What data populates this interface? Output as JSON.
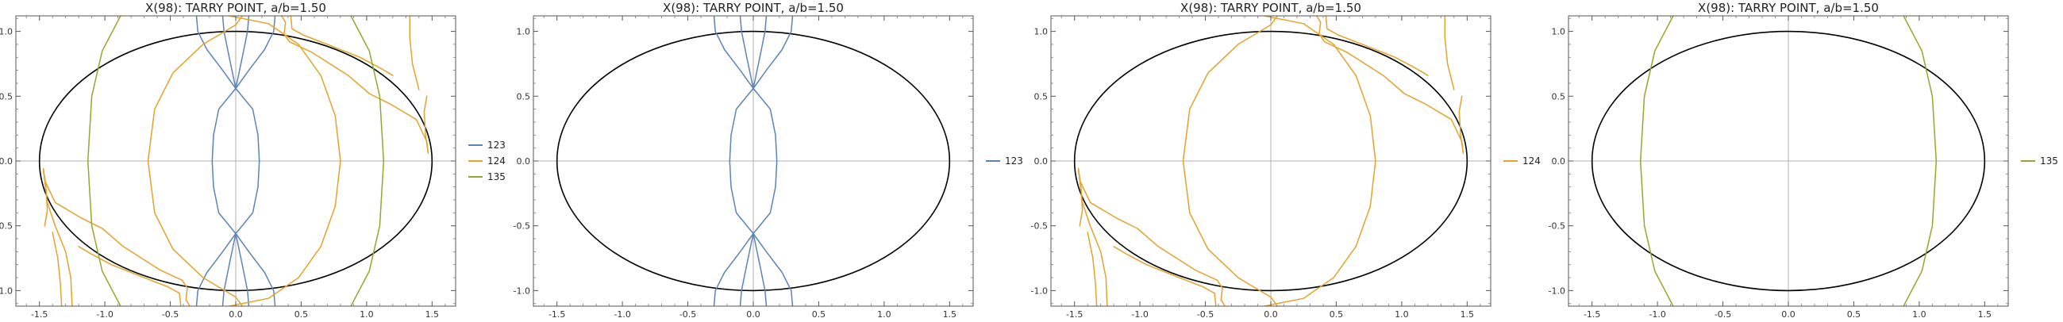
{
  "chart_data": [
    {
      "type": "line",
      "title": "X(98): TARRY POINT, a/b=1.50",
      "xlabel": "",
      "ylabel": "",
      "xlim": [
        -1.68,
        1.68
      ],
      "ylim": [
        -1.12,
        1.12
      ],
      "x_ticks": [
        -1.5,
        -1.0,
        -0.5,
        0.0,
        0.5,
        1.0,
        1.5
      ],
      "x_tick_labels": [
        "-1.5",
        "-1.0",
        "-0.5",
        "0.0",
        "0.5",
        "1.0",
        "1.5"
      ],
      "y_ticks": [
        -1.0,
        -0.5,
        0.0,
        0.5,
        1.0
      ],
      "y_tick_labels": [
        "-1.0",
        "-0.5",
        "0.0",
        "0.5",
        "1.0"
      ],
      "ellipse": {
        "a": 1.5,
        "b": 1.0,
        "color": "#000000"
      },
      "legend_position": "right",
      "series": [
        {
          "name": "123",
          "color": "#5b84b7"
        },
        {
          "name": "124",
          "color": "#e4a32a"
        },
        {
          "name": "135",
          "color": "#8faa2d"
        }
      ]
    },
    {
      "type": "line",
      "title": "X(98): TARRY POINT, a/b=1.50",
      "xlabel": "",
      "ylabel": "",
      "xlim": [
        -1.68,
        1.68
      ],
      "ylim": [
        -1.12,
        1.12
      ],
      "x_ticks": [
        -1.5,
        -1.0,
        -0.5,
        0.0,
        0.5,
        1.0,
        1.5
      ],
      "x_tick_labels": [
        "-1.5",
        "-1.0",
        "-0.5",
        "0.0",
        "0.5",
        "1.0",
        "1.5"
      ],
      "y_ticks": [
        -1.0,
        -0.5,
        0.0,
        0.5,
        1.0
      ],
      "y_tick_labels": [
        "-1.0",
        "-0.5",
        "0.0",
        "0.5",
        "1.0"
      ],
      "ellipse": {
        "a": 1.5,
        "b": 1.0,
        "color": "#000000"
      },
      "legend_position": "right",
      "series": [
        {
          "name": "123",
          "color": "#5b84b7"
        }
      ]
    },
    {
      "type": "line",
      "title": "X(98): TARRY POINT, a/b=1.50",
      "xlabel": "",
      "ylabel": "",
      "xlim": [
        -1.68,
        1.68
      ],
      "ylim": [
        -1.12,
        1.12
      ],
      "x_ticks": [
        -1.5,
        -1.0,
        -0.5,
        0.0,
        0.5,
        1.0,
        1.5
      ],
      "x_tick_labels": [
        "-1.5",
        "-1.0",
        "-0.5",
        "0.0",
        "0.5",
        "1.0",
        "1.5"
      ],
      "y_ticks": [
        -1.0,
        -0.5,
        0.0,
        0.5,
        1.0
      ],
      "y_tick_labels": [
        "-1.0",
        "-0.5",
        "0.0",
        "0.5",
        "1.0"
      ],
      "ellipse": {
        "a": 1.5,
        "b": 1.0,
        "color": "#000000"
      },
      "legend_position": "right",
      "series": [
        {
          "name": "124",
          "color": "#e4a32a"
        }
      ]
    },
    {
      "type": "line",
      "title": "X(98): TARRY POINT, a/b=1.50",
      "xlabel": "",
      "ylabel": "",
      "xlim": [
        -1.68,
        1.68
      ],
      "ylim": [
        -1.12,
        1.12
      ],
      "x_ticks": [
        -1.5,
        -1.0,
        -0.5,
        0.0,
        0.5,
        1.0,
        1.5
      ],
      "x_tick_labels": [
        "-1.5",
        "-1.0",
        "-0.5",
        "0.0",
        "0.5",
        "1.0",
        "1.5"
      ],
      "y_ticks": [
        -1.0,
        -0.5,
        0.0,
        0.5,
        1.0
      ],
      "y_tick_labels": [
        "-1.0",
        "-0.5",
        "0.0",
        "0.5",
        "1.0"
      ],
      "ellipse": {
        "a": 1.5,
        "b": 1.0,
        "color": "#000000"
      },
      "legend_position": "right",
      "series": [
        {
          "name": "135",
          "color": "#8faa2d"
        }
      ]
    }
  ],
  "curves": {
    "123": [
      [
        [
          [
            0.3,
            -1.12
          ],
          [
            0.29,
            -1.0
          ],
          [
            0.22,
            -0.86
          ],
          [
            0.1,
            -0.7
          ],
          [
            0.0,
            -0.56
          ],
          [
            -0.13,
            -0.4
          ],
          [
            -0.17,
            -0.2
          ],
          [
            -0.18,
            0.0
          ],
          [
            -0.17,
            0.2
          ],
          [
            -0.13,
            0.4
          ],
          [
            0.0,
            0.56
          ],
          [
            0.1,
            0.7
          ],
          [
            0.22,
            0.86
          ],
          [
            0.29,
            1.0
          ],
          [
            0.3,
            1.12
          ]
        ]
      ],
      [
        [
          [
            -0.3,
            -1.12
          ],
          [
            -0.29,
            -1.0
          ],
          [
            -0.22,
            -0.86
          ],
          [
            -0.1,
            -0.7
          ],
          [
            0.0,
            -0.56
          ],
          [
            0.13,
            -0.4
          ],
          [
            0.17,
            -0.2
          ],
          [
            0.18,
            0.0
          ],
          [
            0.17,
            0.2
          ],
          [
            0.13,
            0.4
          ],
          [
            0.0,
            0.56
          ],
          [
            -0.1,
            0.7
          ],
          [
            -0.22,
            0.86
          ],
          [
            -0.29,
            1.0
          ],
          [
            -0.3,
            1.12
          ]
        ]
      ],
      [
        [
          [
            0.1,
            -1.12
          ],
          [
            0.09,
            -1.0
          ],
          [
            0.05,
            -0.8
          ],
          [
            0.0,
            -0.56
          ]
        ]
      ],
      [
        [
          [
            -0.1,
            -1.12
          ],
          [
            -0.09,
            -1.0
          ],
          [
            -0.05,
            -0.8
          ],
          [
            0.0,
            -0.56
          ]
        ]
      ],
      [
        [
          [
            0.0,
            0.56
          ],
          [
            0.05,
            0.8
          ],
          [
            0.09,
            1.0
          ],
          [
            0.1,
            1.12
          ]
        ]
      ],
      [
        [
          [
            0.0,
            0.56
          ],
          [
            -0.05,
            0.8
          ],
          [
            -0.09,
            1.0
          ],
          [
            -0.1,
            1.12
          ]
        ]
      ]
    ],
    "124": [
      [
        [
          [
            0.05,
            1.12
          ],
          [
            0.0,
            1.05
          ],
          [
            -0.25,
            0.9
          ],
          [
            -0.48,
            0.68
          ],
          [
            -0.62,
            0.4
          ],
          [
            -0.67,
            0.0
          ],
          [
            -0.62,
            -0.4
          ],
          [
            -0.48,
            -0.68
          ],
          [
            -0.25,
            -0.9
          ],
          [
            0.0,
            -1.05
          ],
          [
            0.05,
            -1.12
          ]
        ]
      ],
      [
        [
          [
            -0.05,
            1.12
          ],
          [
            0.25,
            1.06
          ],
          [
            0.48,
            0.9
          ],
          [
            0.65,
            0.66
          ],
          [
            0.76,
            0.35
          ],
          [
            0.8,
            0.0
          ],
          [
            0.76,
            -0.35
          ],
          [
            0.65,
            -0.66
          ],
          [
            0.48,
            -0.9
          ],
          [
            0.25,
            -1.06
          ],
          [
            -0.05,
            -1.12
          ]
        ]
      ],
      [
        [
          [
            0.35,
            1.12
          ],
          [
            0.38,
            1.07
          ],
          [
            0.37,
            0.98
          ],
          [
            0.41,
            0.92
          ],
          [
            0.58,
            0.84
          ],
          [
            0.86,
            0.66
          ],
          [
            1.02,
            0.52
          ],
          [
            1.18,
            0.44
          ],
          [
            1.38,
            0.32
          ],
          [
            1.46,
            0.15
          ],
          [
            1.47,
            0.06
          ]
        ]
      ],
      [
        [
          [
            0.42,
            1.12
          ],
          [
            0.43,
            1.02
          ],
          [
            0.52,
            0.97
          ],
          [
            0.7,
            0.9
          ],
          [
            0.95,
            0.8
          ],
          [
            1.1,
            0.72
          ],
          [
            1.2,
            0.66
          ]
        ]
      ],
      [
        [
          [
            1.47,
            0.06
          ],
          [
            1.45,
            0.2
          ],
          [
            1.44,
            0.38
          ],
          [
            1.46,
            0.5
          ]
        ]
      ],
      [
        [
          [
            -0.42,
            -1.12
          ],
          [
            -0.43,
            -1.02
          ],
          [
            -0.52,
            -0.97
          ],
          [
            -0.7,
            -0.9
          ],
          [
            -0.95,
            -0.8
          ],
          [
            -1.1,
            -0.72
          ],
          [
            -1.2,
            -0.66
          ]
        ]
      ],
      [
        [
          [
            -0.35,
            -1.12
          ],
          [
            -0.38,
            -1.07
          ],
          [
            -0.37,
            -0.98
          ],
          [
            -0.41,
            -0.92
          ],
          [
            -0.58,
            -0.84
          ],
          [
            -0.86,
            -0.66
          ],
          [
            -1.02,
            -0.52
          ],
          [
            -1.18,
            -0.44
          ],
          [
            -1.38,
            -0.32
          ],
          [
            -1.46,
            -0.15
          ],
          [
            -1.47,
            -0.06
          ]
        ]
      ],
      [
        [
          [
            -1.47,
            -0.06
          ],
          [
            -1.45,
            -0.2
          ],
          [
            -1.44,
            -0.38
          ],
          [
            -1.46,
            -0.5
          ]
        ]
      ],
      [
        [
          [
            -1.25,
            -1.12
          ],
          [
            -1.26,
            -0.9
          ],
          [
            -1.3,
            -0.7
          ],
          [
            -1.38,
            -0.5
          ],
          [
            -1.44,
            -0.32
          ],
          [
            -1.47,
            -0.06
          ]
        ]
      ],
      [
        [
          [
            -1.33,
            -1.12
          ],
          [
            -1.34,
            -0.95
          ],
          [
            -1.36,
            -0.75
          ],
          [
            -1.4,
            -0.55
          ]
        ]
      ],
      [
        [
          [
            1.33,
            1.12
          ],
          [
            1.33,
            0.95
          ],
          [
            1.35,
            0.75
          ],
          [
            1.4,
            0.55
          ]
        ]
      ]
    ],
    "135": [
      [
        [
          [
            -0.88,
            1.12
          ],
          [
            -1.02,
            0.85
          ],
          [
            -1.1,
            0.5
          ],
          [
            -1.13,
            0.0
          ],
          [
            -1.1,
            -0.5
          ],
          [
            -1.02,
            -0.85
          ],
          [
            -0.88,
            -1.12
          ]
        ]
      ],
      [
        [
          [
            0.88,
            1.12
          ],
          [
            1.02,
            0.85
          ],
          [
            1.1,
            0.5
          ],
          [
            1.13,
            0.0
          ],
          [
            1.1,
            -0.5
          ],
          [
            1.02,
            -0.85
          ],
          [
            0.88,
            -1.12
          ]
        ]
      ]
    ]
  }
}
